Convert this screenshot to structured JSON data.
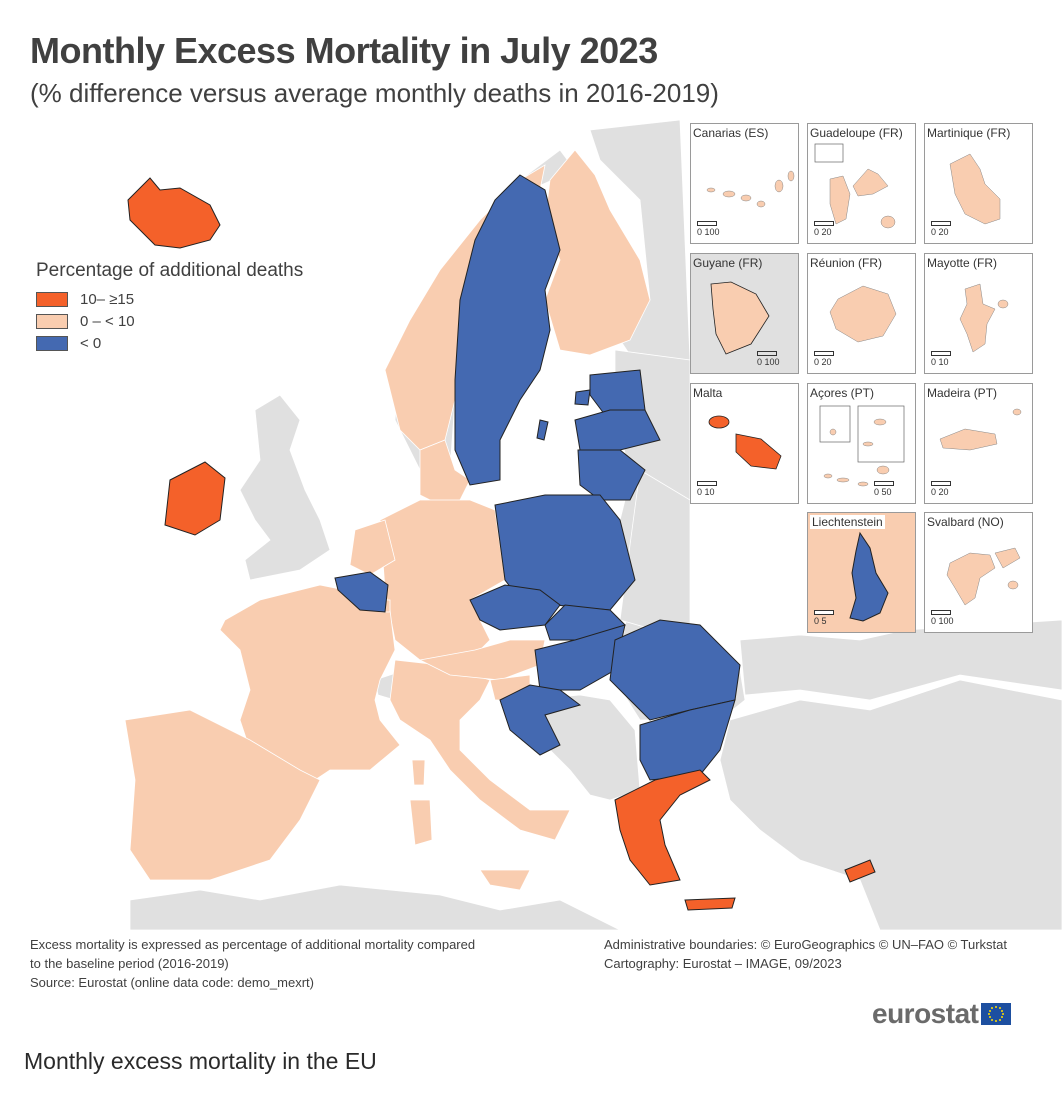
{
  "title": "Monthly Excess Mortality in July 2023",
  "subtitle": "(% difference versus average monthly deaths in 2016-2019)",
  "legend": {
    "title": "Percentage of additional deaths",
    "items": [
      {
        "label": "10– ≥15",
        "color": "#f4612a"
      },
      {
        "label": "0 – < 10",
        "color": "#f9cdb0"
      },
      {
        "label": "< 0",
        "color": "#4469b1"
      }
    ]
  },
  "colors": {
    "non_eu": "#e0e0e0",
    "sea": "#ffffff",
    "border": "#222222"
  },
  "insets": [
    {
      "name": "Canarias (ES)",
      "scale": "0   100",
      "category": "0 – < 10"
    },
    {
      "name": "Guadeloupe (FR)",
      "scale": "0   20",
      "category": "0 – < 10"
    },
    {
      "name": "Martinique (FR)",
      "scale": "0   20",
      "category": "0 – < 10"
    },
    {
      "name": "Guyane (FR)",
      "scale": "0   100",
      "category": "0 – < 10"
    },
    {
      "name": "Réunion (FR)",
      "scale": "0   20",
      "category": "0 – < 10"
    },
    {
      "name": "Mayotte (FR)",
      "scale": "0   10",
      "category": "0 – < 10"
    },
    {
      "name": "Malta",
      "scale": "0   10",
      "category": "10– ≥15"
    },
    {
      "name": "Açores (PT)",
      "scale": "0   50",
      "category": "0 – < 10"
    },
    {
      "name": "Madeira (PT)",
      "scale": "0   20",
      "category": "0 – < 10"
    },
    {
      "name": "Liechtenstein",
      "scale": "0   5",
      "category": "< 0"
    },
    {
      "name": "Svalbard (NO)",
      "scale": "0   100",
      "category": "0 – < 10"
    }
  ],
  "notes_left": [
    "Excess mortality is expressed as percentage of additional mortality compared",
    "to the baseline period (2016-2019)",
    "Source: Eurostat (online data code: demo_mexrt)"
  ],
  "notes_right": [
    "Administrative boundaries: © EuroGeographics © UN–FAO © Turkstat",
    "Cartography: Eurostat – IMAGE, 09/2023"
  ],
  "logo_text": "eurostat",
  "caption": "Monthly excess mortality in the EU"
}
